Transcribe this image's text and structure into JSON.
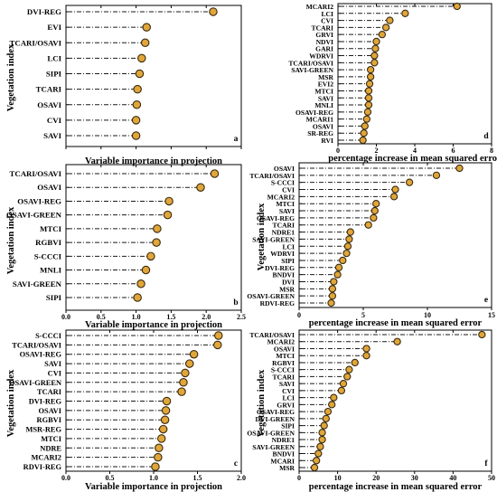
{
  "colors": {
    "dot": "#e0a63a",
    "dot_edge": "#3a2a10",
    "line": "#1a1a1a",
    "axis": "#000000",
    "background": "#ffffff"
  },
  "chart_data": [
    {
      "panel": "a",
      "type": "dot-plot",
      "ylabel": "Vegetation index",
      "xlabel": "Variable importance in projection",
      "xlim": [
        0.0,
        2.5
      ],
      "xticks": [
        0.0,
        0.5,
        1.0,
        1.5,
        2.0,
        2.5
      ],
      "xtick_labels": [
        "",
        "",
        "",
        "",
        "",
        ""
      ],
      "categories": [
        "DVI-REG",
        "EVI",
        "TCARI/OSAVI",
        "LCI",
        "SIPI",
        "TCARI",
        "OSAVI",
        "CVI",
        "SAVI"
      ],
      "values": [
        2.1,
        1.15,
        1.13,
        1.08,
        1.05,
        1.02,
        1.01,
        1.0,
        1.0
      ]
    },
    {
      "panel": "b",
      "type": "dot-plot",
      "ylabel": "Vegetation index",
      "xlabel": "Variable importance in projection",
      "xlim": [
        0.0,
        2.5
      ],
      "xticks": [
        0.0,
        0.5,
        1.0,
        1.5,
        2.0,
        2.5
      ],
      "xtick_labels": [
        "0.0",
        "0.5",
        "1.0",
        "1.5",
        "2.0",
        "2.5"
      ],
      "categories": [
        "TCARI/OSAVI",
        "OSAVI",
        "OSAVI-REG",
        "OSAVI-GREEN",
        "MTCI",
        "RGBVI",
        "S-CCCI",
        "MNLI",
        "SAVI-GREEN",
        "SIPI"
      ],
      "values": [
        2.12,
        1.92,
        1.47,
        1.45,
        1.3,
        1.29,
        1.21,
        1.14,
        1.07,
        1.02
      ]
    },
    {
      "panel": "c",
      "type": "dot-plot",
      "ylabel": "Vegetation index",
      "xlabel": "Variable importance in projection",
      "xlim": [
        0.0,
        2.0
      ],
      "xticks": [
        0.0,
        0.5,
        1.0,
        1.5,
        2.0
      ],
      "xtick_labels": [
        "0.0",
        "0.5",
        "1.0",
        "1.5",
        "2.0"
      ],
      "categories": [
        "S-CCCI",
        "TCARI/OSAVI",
        "OSAVI-REG",
        "SAVI",
        "CVI",
        "OSAVI-GREEN",
        "TCARI",
        "DVI-REG",
        "OSAVI",
        "RGBVI",
        "MSR-REG",
        "MTCI",
        "NDRE",
        "MCARI2",
        "RDVI-REG"
      ],
      "values": [
        1.74,
        1.73,
        1.46,
        1.41,
        1.36,
        1.34,
        1.32,
        1.15,
        1.14,
        1.13,
        1.11,
        1.09,
        1.06,
        1.05,
        1.02
      ]
    },
    {
      "panel": "d",
      "type": "dot-plot",
      "ylabel": "",
      "xlabel": "percentage increase in mean squared error",
      "xlim": [
        0,
        8
      ],
      "xticks": [
        0,
        2,
        4,
        6,
        8
      ],
      "xtick_labels": [
        "0",
        "2",
        "4",
        "6",
        "8"
      ],
      "categories": [
        "MCARI2",
        "LCI",
        "CVI",
        "TCARI",
        "GRVI",
        "NDVI",
        "GARI",
        "WDRVI",
        "TCARI/OSAVI",
        "SAVI-GREEN",
        "MSR",
        "EVI2",
        "MTCI",
        "SAVI",
        "MNLI",
        "OSAVI-REG",
        "MCARI1",
        "OSAVI",
        "SR-REG",
        "RVI"
      ],
      "values": [
        6.2,
        3.5,
        2.7,
        2.5,
        2.3,
        2.0,
        1.95,
        1.9,
        1.9,
        1.7,
        1.7,
        1.65,
        1.6,
        1.6,
        1.6,
        1.55,
        1.5,
        1.4,
        1.35,
        1.3
      ]
    },
    {
      "panel": "e",
      "type": "dot-plot",
      "ylabel": "Vegetation index",
      "xlabel": "percentage increase in mean squared error",
      "xlim": [
        0,
        15
      ],
      "xticks": [
        0,
        5,
        10,
        15
      ],
      "xtick_labels": [
        "0",
        "5",
        "10",
        "15"
      ],
      "categories": [
        "OSAVI",
        "TCARI/OSAVI",
        "S-CCCI",
        "CVI",
        "MCARI2",
        "MTCI",
        "SAVI",
        "OSAVI-REG",
        "TCARI",
        "NDRE1",
        "SAVI-GREEN",
        "LCI",
        "WDRVI",
        "SIPI",
        "DVI-REG",
        "BNDVI",
        "DVI",
        "MSR",
        "OSAVI-GREEN",
        "RDVI-REG"
      ],
      "values": [
        12.5,
        10.7,
        8.6,
        7.5,
        7.4,
        6.0,
        5.9,
        5.8,
        5.4,
        4.0,
        3.9,
        3.8,
        3.7,
        3.4,
        3.1,
        3.0,
        2.7,
        2.6,
        2.6,
        2.5
      ]
    },
    {
      "panel": "f",
      "type": "dot-plot",
      "ylabel": "Vegetation index",
      "xlabel": "percentage increase in mean squared error",
      "xlim": [
        0,
        50
      ],
      "xticks": [
        0,
        10,
        20,
        30,
        40,
        50
      ],
      "xtick_labels": [
        "0",
        "10",
        "20",
        "30",
        "40",
        "50"
      ],
      "categories": [
        "TCARI/OSAVI",
        "MCARI2",
        "OSAVI",
        "MTCI",
        "RGBVI",
        "S-CCCI",
        "TCARI",
        "SAVI",
        "CVI",
        "LCI",
        "GRVI",
        "OSAVI-REG",
        "DVI-GREEN",
        "SIPI",
        "OSAVI-GREEN",
        "NDRE1",
        "SAVI-GREEN",
        "BNDVI",
        "MCARI",
        "MSR"
      ],
      "values": [
        47.5,
        25.5,
        17.5,
        17.5,
        14.5,
        13.0,
        12.5,
        11.5,
        11.0,
        9.0,
        8.5,
        7.5,
        7.0,
        6.5,
        6.0,
        6.0,
        5.5,
        5.0,
        4.5,
        4.0
      ]
    }
  ]
}
